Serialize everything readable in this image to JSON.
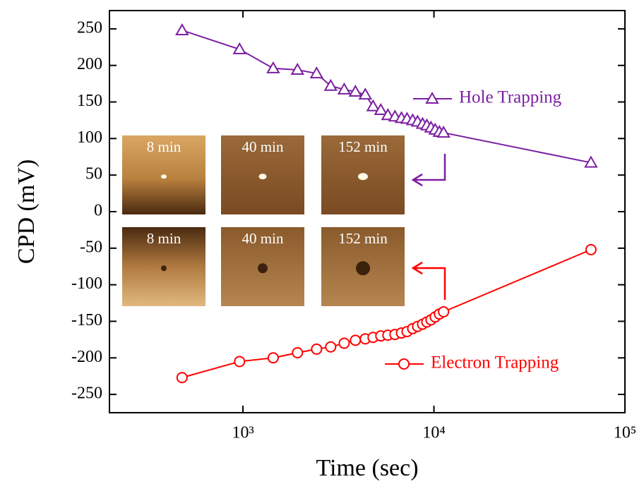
{
  "chart_data": {
    "type": "line",
    "x_label": "Time (sec)",
    "y_label": "CPD (mV)",
    "xscale": "log",
    "xlim": [
      200,
      100000
    ],
    "xticks": [
      {
        "value": 1000,
        "label": "10³"
      },
      {
        "value": 10000,
        "label": "10⁴"
      },
      {
        "value": 100000,
        "label": "10⁵"
      }
    ],
    "ylim": [
      -275,
      275
    ],
    "yticks": [
      -250,
      -200,
      -150,
      -100,
      -50,
      0,
      50,
      100,
      150,
      200,
      250
    ],
    "x": [
      480,
      960,
      1440,
      1930,
      2430,
      2880,
      3390,
      3880,
      4370,
      4800,
      5270,
      5740,
      6250,
      6760,
      7230,
      7740,
      8210,
      8720,
      9180,
      9650,
      10150,
      10680,
      11230,
      66400
    ],
    "series": [
      {
        "name": "Hole Trapping",
        "color": "#7b1fa2",
        "marker": "triangle",
        "values": [
          248,
          222,
          196,
          194,
          189,
          172,
          167,
          164,
          160,
          144,
          139,
          132,
          130,
          128,
          127,
          125,
          123,
          120,
          118,
          115,
          112,
          109,
          108,
          67
        ]
      },
      {
        "name": "Electron Trapping",
        "color": "#ff0000",
        "marker": "circle",
        "values": [
          -227,
          -205,
          -200,
          -193,
          -188,
          -185,
          -180,
          -176,
          -174,
          -172,
          -170,
          -169,
          -168,
          -166,
          -164,
          -160,
          -157,
          -154,
          -151,
          -148,
          -144,
          -140,
          -137,
          -52
        ]
      }
    ],
    "insets": [
      {
        "label": "8 min"
      },
      {
        "label": "40 min"
      },
      {
        "label": "152 min"
      },
      {
        "label": "8 min"
      },
      {
        "label": "40 min"
      },
      {
        "label": "152 min"
      }
    ]
  }
}
